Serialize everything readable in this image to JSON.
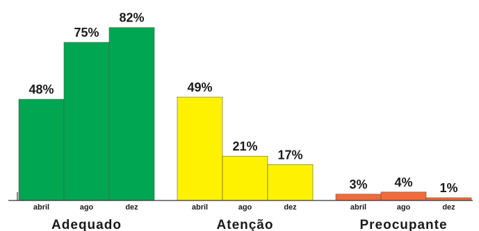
{
  "chart_data": {
    "type": "bar",
    "title": "",
    "xlabel": "",
    "ylabel": "",
    "ylim": [
      0,
      100
    ],
    "grid": false,
    "legend": "none",
    "groups": [
      {
        "name": "Adequado",
        "color": "#00a651",
        "bars": [
          {
            "label": "abril",
            "value": 48,
            "value_label": "48%"
          },
          {
            "label": "ago",
            "value": 75,
            "value_label": "75%"
          },
          {
            "label": "dez",
            "value": 82,
            "value_label": "82%"
          }
        ]
      },
      {
        "name": "Atenção",
        "color": "#fff200",
        "bars": [
          {
            "label": "abril",
            "value": 49,
            "value_label": "49%"
          },
          {
            "label": "ago",
            "value": 21,
            "value_label": "21%"
          },
          {
            "label": "dez",
            "value": 17,
            "value_label": "17%"
          }
        ]
      },
      {
        "name": "Preocupante",
        "color": "#f26b3a",
        "bars": [
          {
            "label": "abril",
            "value": 3,
            "value_label": "3%"
          },
          {
            "label": "ago",
            "value": 4,
            "value_label": "4%"
          },
          {
            "label": "dez",
            "value": 1,
            "value_label": "1%"
          }
        ]
      }
    ]
  }
}
